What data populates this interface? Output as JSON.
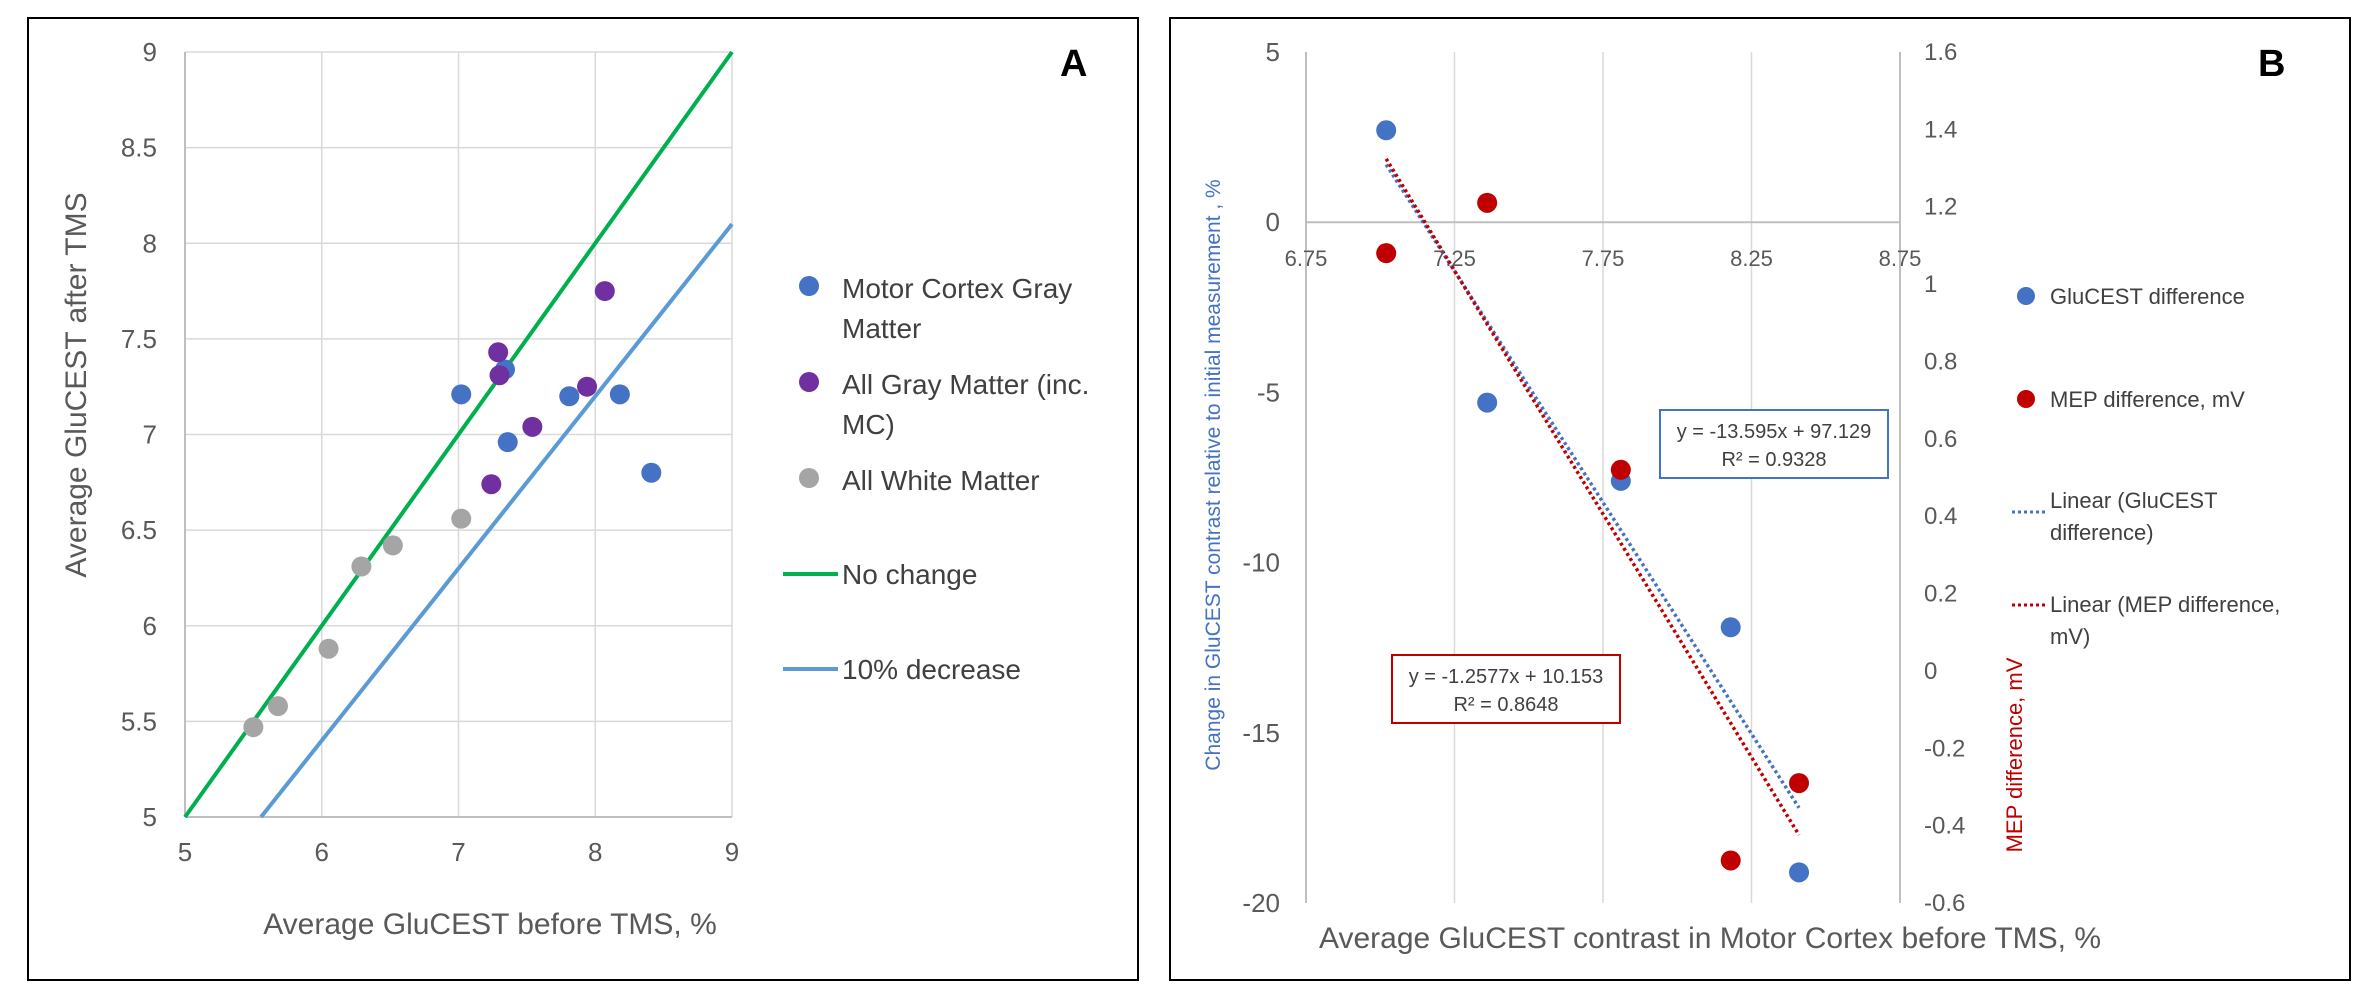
{
  "chart_data": [
    {
      "panel": "A",
      "type": "scatter",
      "xlabel": "Average GluCEST before TMS, %",
      "ylabel": "Average GluCEST  after TMS",
      "xlim": [
        5,
        9
      ],
      "ylim": [
        5,
        9
      ],
      "xticks": [
        "5",
        "6",
        "7",
        "8",
        "9"
      ],
      "yticks": [
        "5",
        "5.5",
        "6",
        "6.5",
        "7",
        "7.5",
        "8",
        "8.5",
        "9"
      ],
      "series": [
        {
          "name": "Motor Cortex Gray Matter",
          "name_lines": [
            "Motor Cortex Gray",
            "Matter"
          ],
          "color": "#4472C4",
          "points": [
            [
              7.02,
              7.21
            ],
            [
              7.34,
              7.34
            ],
            [
              7.36,
              6.96
            ],
            [
              7.81,
              7.2
            ],
            [
              8.18,
              7.21
            ],
            [
              8.41,
              6.8
            ]
          ]
        },
        {
          "name": "All Gray Matter (inc. MC)",
          "name_lines": [
            "All Gray Matter (inc.",
            "MC)"
          ],
          "color": "#7030A0",
          "points": [
            [
              7.29,
              7.43
            ],
            [
              7.3,
              7.31
            ],
            [
              7.24,
              6.74
            ],
            [
              7.54,
              7.04
            ],
            [
              7.94,
              7.25
            ],
            [
              8.07,
              7.75
            ]
          ]
        },
        {
          "name": "All White Matter",
          "name_lines": [
            "All White Matter"
          ],
          "color": "#A5A5A5",
          "points": [
            [
              5.5,
              5.47
            ],
            [
              5.68,
              5.58
            ],
            [
              6.05,
              5.88
            ],
            [
              6.29,
              6.31
            ],
            [
              6.52,
              6.42
            ],
            [
              7.02,
              6.56
            ]
          ]
        }
      ],
      "lines": [
        {
          "name": "No change",
          "color": "#00B050",
          "points": [
            [
              5,
              5
            ],
            [
              9,
              9
            ]
          ]
        },
        {
          "name": "10% decrease",
          "color": "#5B9BD5",
          "points": [
            [
              5.556,
              5
            ],
            [
              9,
              8.1
            ]
          ]
        }
      ]
    },
    {
      "panel": "B",
      "type": "scatter",
      "xlabel": "Average GluCEST contrast in Motor Cortex before TMS, %",
      "ylabel_left": "Change  in GluCEST contrast relative to initial measurement , %",
      "ylabel_right": "MEP difference, mV",
      "xlim": [
        6.75,
        8.75
      ],
      "xticks": [
        "6.75",
        "7.25",
        "7.75",
        "8.25",
        "8.75"
      ],
      "ylim_left": [
        -20,
        5
      ],
      "yticks_left": [
        "5",
        "0",
        "-5",
        "-10",
        "-15",
        "-20"
      ],
      "ylim_right": [
        -0.6,
        1.6
      ],
      "yticks_right": [
        "1.6",
        "1.4",
        "1.2",
        "1",
        "0.8",
        "0.6",
        "0.4",
        "0.2",
        "0",
        "-0.2",
        "-0.4",
        "-0.6"
      ],
      "series": [
        {
          "name": "GluCEST difference",
          "name_lines": [
            "GluCEST difference"
          ],
          "axis": "left",
          "color": "#4472C4",
          "points": [
            [
              7.02,
              2.7
            ],
            [
              7.36,
              -5.3
            ],
            [
              7.81,
              -7.6
            ],
            [
              8.18,
              -11.9
            ],
            [
              8.41,
              -19.1
            ]
          ]
        },
        {
          "name": "MEP difference, mV",
          "name_lines": [
            "MEP difference, mV"
          ],
          "axis": "right",
          "color": "#C00000",
          "points": [
            [
              7.02,
              1.08
            ],
            [
              7.36,
              1.21
            ],
            [
              7.81,
              0.52
            ],
            [
              8.18,
              -0.49
            ],
            [
              8.41,
              -0.29
            ]
          ]
        }
      ],
      "trendlines": [
        {
          "name": "Linear (GluCEST difference)",
          "name_lines": [
            "Linear (GluCEST",
            "difference)"
          ],
          "axis": "left",
          "color": "#4472C4",
          "slope": -13.595,
          "intercept": 97.129,
          "x_range": [
            7.02,
            8.41
          ],
          "equation": "y = -13.595x + 97.129",
          "r2": "R² = 0.9328"
        },
        {
          "name": "Linear (MEP difference, mV)",
          "name_lines": [
            "Linear (MEP difference,",
            "mV)"
          ],
          "axis": "right",
          "color": "#C00000",
          "slope": -1.2577,
          "intercept": 10.153,
          "x_range": [
            7.02,
            8.41
          ],
          "equation": "y = -1.2577x + 10.153",
          "r2": "R² = 0.8648"
        }
      ]
    }
  ]
}
